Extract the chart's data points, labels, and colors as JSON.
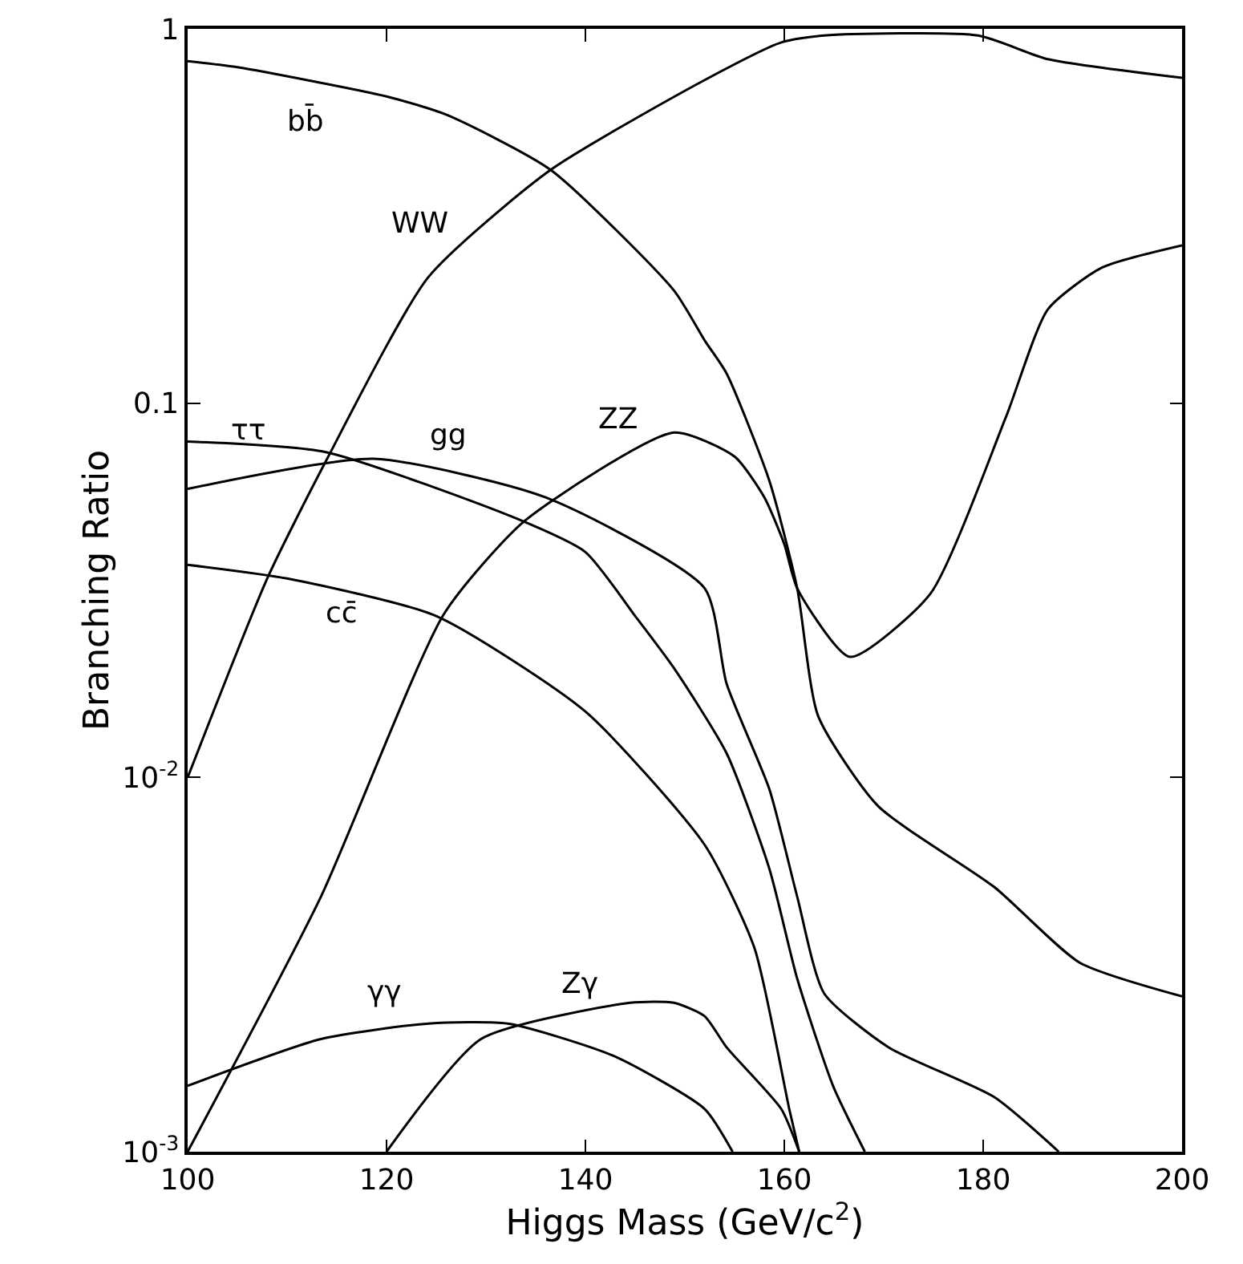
{
  "chart_data": {
    "type": "line",
    "xlabel": "Higgs Mass (GeV/c$^{2}$)",
    "ylabel": "Branching Ratio",
    "log": "y",
    "grid": false,
    "legend": false,
    "marker": "none",
    "line_style": "solid",
    "xlim": [
      100,
      200
    ],
    "xticks": [
      100,
      120,
      140,
      160,
      180,
      200
    ],
    "ylim": [
      0.001,
      1
    ],
    "yticks": [
      {
        "value": 0.001,
        "label": "10$^{-3}$"
      },
      {
        "value": 0.01,
        "label": "10$^{-2}$"
      },
      0.1,
      1
    ],
    "series": [
      {
        "name": "bb̄",
        "color": "#000000",
        "x": [
          100,
          105,
          120,
          126,
          136.5,
          148.9,
          152,
          154.2,
          158.5,
          161.3,
          163.4,
          169.4,
          181.1,
          189.7,
          200
        ],
        "values": [
          0.82,
          0.79,
          0.66,
          0.59,
          0.42,
          0.2,
          0.147,
          0.12,
          0.062,
          0.032,
          0.0146,
          0.0084,
          0.0051,
          0.0032,
          0.0026
        ]
      },
      {
        "name": "WW",
        "color": "#000000",
        "x": [
          100,
          108,
          113.9,
          124.2,
          136.5,
          152,
          159.7,
          164,
          179.5,
          186.5,
          200
        ],
        "values": [
          0.01,
          0.034,
          0.07,
          0.217,
          0.42,
          0.73,
          0.92,
          0.96,
          0.96,
          0.83,
          0.74
        ]
      },
      {
        "name": "ττ",
        "color": "#000000",
        "x": [
          100,
          113.9,
          133.2,
          140,
          145,
          148.9,
          154.2,
          158.5,
          161.3,
          164.9,
          168.1
        ],
        "values": [
          0.079,
          0.074,
          0.049,
          0.04,
          0.027,
          0.0196,
          0.0116,
          0.0057,
          0.0029,
          0.0015,
          0.001
        ]
      },
      {
        "name": "gg",
        "color": "#000000",
        "x": [
          100,
          118.7,
          136,
          152,
          154.2,
          158.5,
          161.3,
          164,
          170.5,
          181.1,
          187.6
        ],
        "values": [
          0.059,
          0.071,
          0.056,
          0.032,
          0.0178,
          0.0093,
          0.0048,
          0.00265,
          0.0019,
          0.0014,
          0.001
        ]
      },
      {
        "name": "ZZ",
        "color": "#000000",
        "x": [
          100,
          113.4,
          125.8,
          133.9,
          148.9,
          155,
          158,
          160,
          161.3,
          166.6,
          174.7,
          182.3,
          186.5,
          191.9,
          200
        ],
        "values": [
          0.001,
          0.0048,
          0.0274,
          0.0485,
          0.0835,
          0.072,
          0.056,
          0.042,
          0.032,
          0.021,
          0.031,
          0.092,
          0.178,
          0.23,
          0.264
        ]
      },
      {
        "name": "cc̄",
        "color": "#000000",
        "x": [
          100,
          110,
          125,
          140,
          152,
          157,
          160.5,
          161.5
        ],
        "values": [
          0.037,
          0.034,
          0.027,
          0.015,
          0.0066,
          0.0035,
          0.0013,
          0.001
        ]
      },
      {
        "name": "γγ",
        "color": "#000000",
        "x": [
          100,
          113.4,
          124.2,
          132.2,
          142.9,
          152,
          154.8
        ],
        "values": [
          0.0015,
          0.002,
          0.0022,
          0.0022,
          0.0018,
          0.0013,
          0.001
        ]
      },
      {
        "name": "Zγ",
        "color": "#000000",
        "x": [
          120,
          129.5,
          144.5,
          148.9,
          152,
          154.2,
          159.7,
          161.5
        ],
        "values": [
          0.001,
          0.002,
          0.0025,
          0.0025,
          0.0023,
          0.0019,
          0.0013,
          0.001
        ]
      }
    ]
  }
}
